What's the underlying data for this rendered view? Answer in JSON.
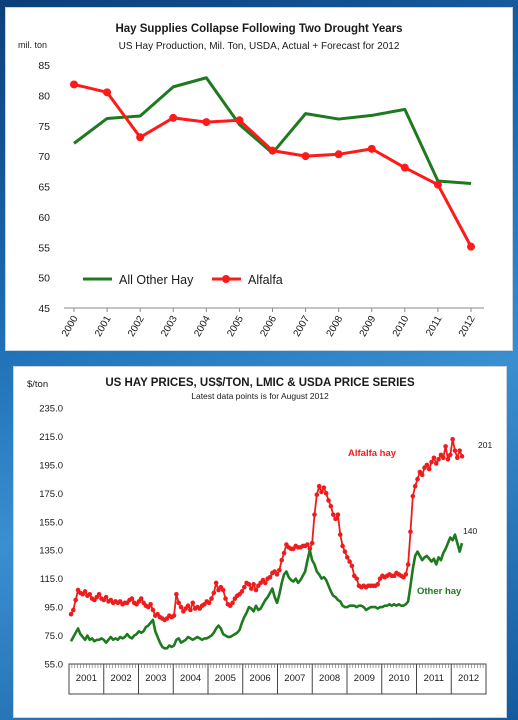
{
  "chart_data": [
    {
      "type": "line",
      "title": "Hay Supplies Collapse Following Two Drought Years",
      "subtitle": "US Hay Production,  Mil. Ton, USDA, Actual + Forecast for 2012",
      "ylabel": "mil. ton",
      "xlabel": "",
      "ylim": [
        45,
        85
      ],
      "yticks": [
        "45",
        "50",
        "55",
        "60",
        "65",
        "70",
        "75",
        "80",
        "85"
      ],
      "x": [
        "2000",
        "2001",
        "2002",
        "2003",
        "2004",
        "2005",
        "2006",
        "2007",
        "2008",
        "2009",
        "2010",
        "2011",
        "2012"
      ],
      "grid": false,
      "legend": "bottom-left",
      "series": [
        {
          "name": "All Other Hay",
          "color": "#1e7a1e",
          "values": [
            72.1,
            76.2,
            76.6,
            81.4,
            82.9,
            75.2,
            70.5,
            77.0,
            76.1,
            76.7,
            77.7,
            65.9,
            65.5
          ]
        },
        {
          "name": "Alfalfa",
          "color": "#ff1a1a",
          "values": [
            81.8,
            80.5,
            73.1,
            76.3,
            75.6,
            75.9,
            70.9,
            70.0,
            70.3,
            71.2,
            68.1,
            65.3,
            55.1
          ]
        }
      ]
    },
    {
      "type": "line",
      "title": "US HAY PRICES, US$/TON, LMIC & USDA PRICE SERIES",
      "subtitle": "Latest data points is for August 2012",
      "ylabel": "$/ton",
      "xlabel": "",
      "ylim": [
        55,
        235
      ],
      "yticks": [
        "55.0",
        "75.0",
        "95.0",
        "115.0",
        "135.0",
        "155.0",
        "175.0",
        "195.0",
        "215.0",
        "235.0"
      ],
      "years": [
        "2001",
        "2002",
        "2003",
        "2004",
        "2005",
        "2006",
        "2007",
        "2008",
        "2009",
        "2010",
        "2011",
        "2012"
      ],
      "grid": false,
      "series": [
        {
          "name": "Alfalfa hay",
          "color": "#ee1c1c",
          "end_label": "201",
          "values": [
            90,
            93,
            100,
            107,
            105,
            104,
            106,
            103,
            104,
            101,
            100,
            102,
            104,
            101,
            100,
            102,
            99,
            100,
            98,
            99,
            98,
            99,
            97,
            98,
            98,
            100,
            101,
            98,
            97,
            99,
            101,
            98,
            96,
            95,
            97,
            93,
            89,
            90,
            88,
            87,
            86,
            87,
            89,
            88,
            89,
            104,
            98,
            95,
            92,
            94,
            96,
            93,
            98,
            94,
            95,
            94,
            96,
            97,
            99,
            98,
            101,
            105,
            112,
            107,
            109,
            107,
            101,
            97,
            96,
            98,
            101,
            103,
            104,
            106,
            109,
            112,
            111,
            108,
            111,
            107,
            110,
            112,
            114,
            112,
            115,
            116,
            119,
            120,
            118,
            121,
            128,
            133,
            139,
            137,
            136,
            136,
            138,
            137,
            137,
            138,
            138,
            139,
            136,
            140,
            160,
            174,
            180,
            176,
            179,
            175,
            170,
            166,
            160,
            157,
            160,
            146,
            138,
            134,
            130,
            127,
            124,
            117,
            115,
            110,
            109,
            110,
            109,
            110,
            110,
            110,
            110,
            111,
            115,
            117,
            116,
            117,
            118,
            117,
            117,
            119,
            118,
            117,
            116,
            118,
            125,
            148,
            173,
            180,
            185,
            190,
            188,
            193,
            195,
            192,
            197,
            200,
            196,
            199,
            202,
            200,
            208,
            199,
            202,
            213,
            205,
            200,
            205,
            201
          ]
        },
        {
          "name": "Other hay",
          "color": "#1e7a1e",
          "end_label": "140",
          "values": [
            71,
            74,
            77,
            80,
            76,
            74,
            72,
            75,
            72,
            73,
            71,
            72,
            72,
            73,
            72,
            70,
            72,
            74,
            72,
            73,
            72,
            74,
            73,
            74,
            76,
            74,
            73,
            75,
            76,
            78,
            77,
            78,
            81,
            82,
            84,
            86,
            78,
            74,
            70,
            67,
            66,
            66,
            68,
            67,
            68,
            72,
            73,
            70,
            71,
            72,
            74,
            73,
            72,
            73,
            74,
            73,
            72,
            73,
            73,
            74,
            75,
            77,
            80,
            82,
            80,
            76,
            75,
            74,
            74,
            75,
            76,
            77,
            79,
            84,
            88,
            91,
            95,
            94,
            92,
            96,
            93,
            94,
            97,
            100,
            102,
            105,
            108,
            102,
            98,
            104,
            112,
            118,
            120,
            116,
            114,
            113,
            115,
            112,
            114,
            117,
            120,
            128,
            135,
            128,
            125,
            120,
            118,
            115,
            116,
            114,
            110,
            106,
            103,
            102,
            100,
            99,
            96,
            95,
            95,
            96,
            96,
            96,
            95,
            96,
            96,
            95,
            93,
            94,
            95,
            95,
            95,
            94,
            95,
            95,
            96,
            96,
            97,
            96,
            97,
            96,
            97,
            96,
            96,
            97,
            99,
            110,
            122,
            131,
            134,
            131,
            128,
            130,
            131,
            129,
            127,
            129,
            125,
            130,
            128,
            133,
            136,
            140,
            144,
            142,
            146,
            140,
            134,
            140
          ]
        }
      ]
    }
  ]
}
